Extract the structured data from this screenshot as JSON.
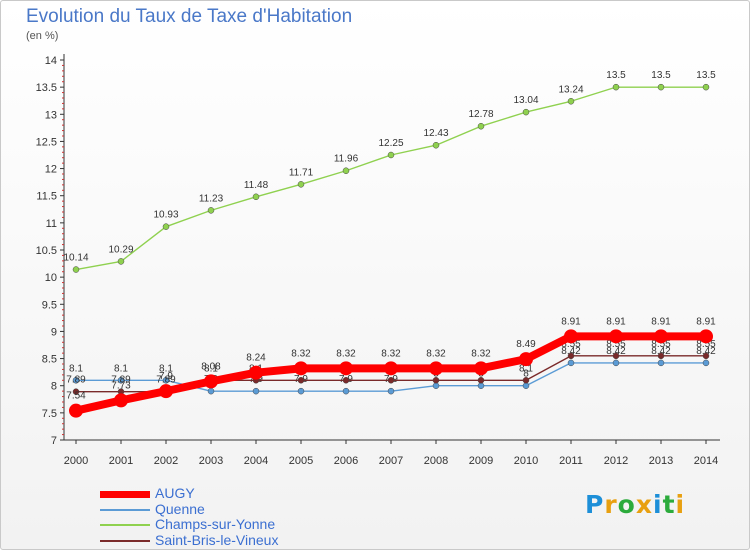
{
  "header": {
    "title": "Evolution du Taux de Taxe d'Habitation",
    "unit": "(en %)"
  },
  "chart_data": {
    "type": "line",
    "title": "Evolution du Taux de Taxe d'Habitation",
    "ylabel": "(en %)",
    "xlabel": "",
    "ylim": [
      7,
      14
    ],
    "y_ticks": [
      "7",
      "7.5",
      "8",
      "8.5",
      "9",
      "9.5",
      "10",
      "10.5",
      "11",
      "11.5",
      "12",
      "12.5",
      "13",
      "13.5",
      "14"
    ],
    "x": [
      "2000",
      "2001",
      "2002",
      "2003",
      "2004",
      "2005",
      "2006",
      "2007",
      "2008",
      "2009",
      "2010",
      "2011",
      "2012",
      "2013",
      "2014"
    ],
    "grid": false,
    "legend_position": "bottom-left",
    "series": [
      {
        "name": "AUGY",
        "color": "#ff0000",
        "emphasis": true,
        "values": [
          7.54,
          7.73,
          7.9,
          8.08,
          8.24,
          8.32,
          8.32,
          8.32,
          8.32,
          8.32,
          8.49,
          8.91,
          8.91,
          8.91,
          8.91
        ]
      },
      {
        "name": "Quenne",
        "color": "#5b9bd5",
        "values": [
          8.1,
          8.1,
          8.1,
          7.9,
          7.9,
          7.9,
          7.9,
          7.9,
          8.0,
          8.0,
          8.0,
          8.42,
          8.42,
          8.42,
          8.42
        ]
      },
      {
        "name": "Champs-sur-Yonne",
        "color": "#8fd14f",
        "values": [
          10.14,
          10.29,
          10.93,
          11.23,
          11.48,
          11.71,
          11.96,
          12.25,
          12.43,
          12.78,
          13.04,
          13.24,
          13.5,
          13.5,
          13.5
        ]
      },
      {
        "name": "Saint-Bris-le-Vineux",
        "color": "#7a2a2a",
        "values": [
          7.89,
          7.89,
          7.89,
          8.1,
          8.1,
          8.1,
          8.1,
          8.1,
          8.1,
          8.1,
          8.1,
          8.55,
          8.55,
          8.55,
          8.55
        ]
      }
    ]
  },
  "logo": {
    "letters": [
      "P",
      "r",
      "o",
      "x",
      "i",
      "t",
      "i"
    ],
    "colors": [
      "#1d8fd8",
      "#e8a010",
      "#2cab3c",
      "#e8a010",
      "#1d8fd8",
      "#2cab3c",
      "#e8a010"
    ]
  }
}
